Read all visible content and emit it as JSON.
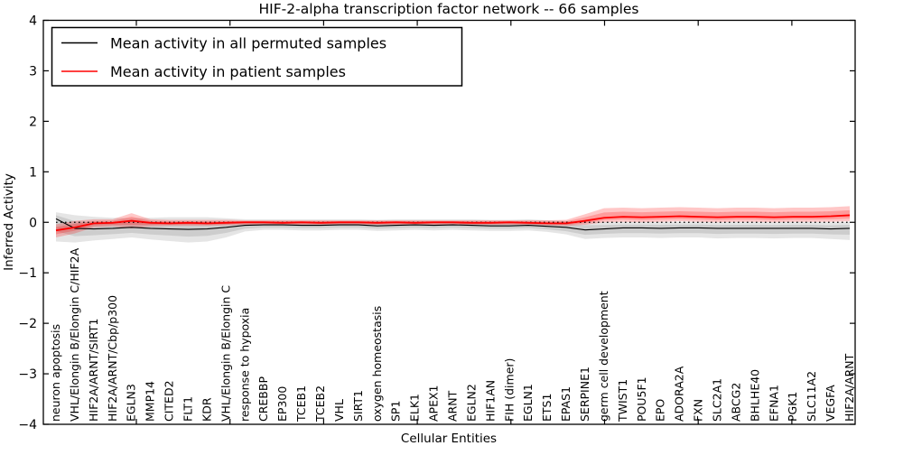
{
  "figure": {
    "background": "#ffffff",
    "frame_color": "#000000"
  },
  "chart_data": {
    "type": "line",
    "title": "HIF-2-alpha transcription factor network -- 66 samples",
    "xlabel": "Cellular Entities",
    "ylabel": "Inferred Activity",
    "ylim": [
      -4,
      4
    ],
    "yticks": [
      4,
      3,
      2,
      1,
      0,
      -1,
      -2,
      -3,
      -4
    ],
    "grid": false,
    "legend_position": "upper left",
    "zero_line": {
      "y": 0,
      "style": "dotted",
      "color": "#000000"
    },
    "categories": [
      "neuron apoptosis",
      "VHL/Elongin B/Elongin C/HIF2A",
      "HIF2A/ARNT/SIRT1",
      "HIF2A/ARNT/Cbp/p300",
      "EGLN3",
      "MMP14",
      "CITED2",
      "FLT1",
      "KDR",
      "VHL/Elongin B/Elongin C",
      "response to hypoxia",
      "CREBBP",
      "EP300",
      "TCEB1",
      "TCEB2",
      "VHL",
      "SIRT1",
      "oxygen homeostasis",
      "SP1",
      "ELK1",
      "APEX1",
      "ARNT",
      "EGLN2",
      "HIF1AN",
      "FIH (dimer)",
      "EGLN1",
      "ETS1",
      "EPAS1",
      "SERPINE1",
      "germ cell development",
      "TWIST1",
      "POU5F1",
      "EPO",
      "ADORA2A",
      "FXN",
      "SLC2A1",
      "ABCG2",
      "BHLHE40",
      "EFNA1",
      "PGK1",
      "SLC11A2",
      "VEGFA",
      "HIF2A/ARNT"
    ],
    "series": [
      {
        "name": "Mean activity in all permuted samples",
        "color": "#000000",
        "band_color": "rgba(0,0,0,0.10)",
        "values": [
          0.07,
          -0.12,
          -0.13,
          -0.12,
          -0.1,
          -0.12,
          -0.13,
          -0.14,
          -0.13,
          -0.1,
          -0.06,
          -0.05,
          -0.05,
          -0.06,
          -0.06,
          -0.05,
          -0.05,
          -0.07,
          -0.06,
          -0.05,
          -0.06,
          -0.05,
          -0.06,
          -0.07,
          -0.07,
          -0.06,
          -0.08,
          -0.1,
          -0.15,
          -0.13,
          -0.11,
          -0.11,
          -0.12,
          -0.11,
          -0.11,
          -0.12,
          -0.12,
          -0.12,
          -0.12,
          -0.12,
          -0.12,
          -0.13,
          -0.12
        ],
        "band_low": [
          -0.38,
          -0.4,
          -0.36,
          -0.33,
          -0.3,
          -0.34,
          -0.37,
          -0.4,
          -0.38,
          -0.3,
          -0.18,
          -0.15,
          -0.15,
          -0.16,
          -0.16,
          -0.15,
          -0.15,
          -0.17,
          -0.16,
          -0.15,
          -0.16,
          -0.15,
          -0.16,
          -0.17,
          -0.17,
          -0.16,
          -0.19,
          -0.24,
          -0.33,
          -0.31,
          -0.3,
          -0.3,
          -0.31,
          -0.3,
          -0.3,
          -0.32,
          -0.31,
          -0.31,
          -0.32,
          -0.31,
          -0.31,
          -0.33,
          -0.35
        ],
        "band_high": [
          0.2,
          0.14,
          0.11,
          0.09,
          0.08,
          0.09,
          0.1,
          0.1,
          0.1,
          0.08,
          0.06,
          0.06,
          0.06,
          0.06,
          0.06,
          0.06,
          0.06,
          0.05,
          0.06,
          0.06,
          0.06,
          0.06,
          0.06,
          0.05,
          0.05,
          0.06,
          0.04,
          0.03,
          0.02,
          0.01,
          0.01,
          0.01,
          0.01,
          0.01,
          0.01,
          0.0,
          0.01,
          0.01,
          0.0,
          0.01,
          0.01,
          0.0,
          0.01
        ]
      },
      {
        "name": "Mean activity in patient samples",
        "color": "#ff0000",
        "band_color": "rgba(255,0,0,0.22)",
        "values": [
          -0.16,
          -0.1,
          -0.02,
          -0.01,
          0.03,
          -0.01,
          -0.02,
          -0.01,
          -0.02,
          -0.01,
          0.0,
          0.0,
          -0.01,
          0.0,
          -0.01,
          0.0,
          0.0,
          -0.01,
          0.0,
          -0.01,
          0.0,
          0.0,
          -0.01,
          -0.01,
          0.0,
          -0.01,
          -0.02,
          -0.02,
          0.03,
          0.09,
          0.11,
          0.1,
          0.11,
          0.12,
          0.11,
          0.1,
          0.11,
          0.11,
          0.1,
          0.11,
          0.11,
          0.12,
          0.14
        ],
        "band_low": [
          -0.3,
          -0.22,
          -0.1,
          -0.08,
          -0.12,
          -0.08,
          -0.07,
          -0.07,
          -0.07,
          -0.06,
          -0.05,
          -0.05,
          -0.05,
          -0.05,
          -0.05,
          -0.05,
          -0.05,
          -0.05,
          -0.05,
          -0.05,
          -0.05,
          -0.05,
          -0.05,
          -0.05,
          -0.05,
          -0.05,
          -0.06,
          -0.07,
          -0.05,
          0.0,
          0.01,
          0.0,
          0.01,
          0.02,
          0.01,
          0.0,
          0.01,
          0.01,
          0.0,
          0.01,
          0.01,
          0.01,
          0.02
        ],
        "band_high": [
          -0.04,
          0.03,
          0.06,
          0.06,
          0.18,
          0.06,
          0.05,
          0.05,
          0.05,
          0.05,
          0.04,
          0.04,
          0.04,
          0.04,
          0.04,
          0.04,
          0.04,
          0.04,
          0.04,
          0.04,
          0.04,
          0.04,
          0.04,
          0.04,
          0.04,
          0.04,
          0.04,
          0.05,
          0.16,
          0.28,
          0.29,
          0.28,
          0.29,
          0.3,
          0.29,
          0.28,
          0.29,
          0.29,
          0.28,
          0.29,
          0.29,
          0.3,
          0.32
        ]
      }
    ]
  }
}
